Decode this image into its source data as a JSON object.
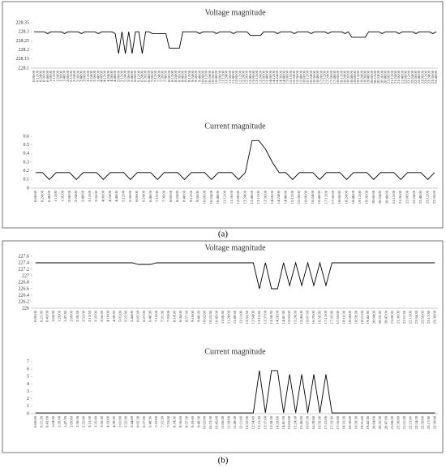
{
  "panel_labels": [
    "(a)",
    "(b)"
  ],
  "chart_data": [
    {
      "type": "line",
      "title": "Voltage magnitude",
      "color": "#000000",
      "ylim": [
        228.1,
        228.35
      ],
      "yticks": [
        228.1,
        228.15,
        228.2,
        228.25,
        228.3,
        228.35
      ],
      "categories": [
        "0:00:00",
        "0:12:00",
        "0:24:00",
        "0:36:00",
        "0:48:00",
        "1:00:00",
        "1:12:00",
        "1:24:00",
        "1:36:00",
        "1:48:00",
        "2:00:00",
        "2:12:00",
        "2:24:00",
        "2:36:00",
        "2:48:00",
        "3:00:00",
        "3:12:00",
        "3:24:00",
        "3:36:00",
        "3:48:00",
        "4:00:00",
        "4:12:00",
        "4:24:00",
        "4:36:00",
        "4:48:00",
        "5:00:00",
        "5:12:00",
        "5:24:00",
        "5:36:00",
        "5:48:00",
        "6:00:00",
        "6:12:00",
        "6:24:00",
        "6:36:00",
        "6:48:00",
        "7:00:00",
        "7:12:00",
        "7:24:00",
        "7:36:00",
        "7:48:00",
        "8:00:00",
        "8:12:00",
        "8:24:00",
        "8:36:00",
        "8:48:00",
        "9:00:00",
        "9:12:00",
        "9:24:00",
        "9:36:00",
        "9:48:00",
        "10:00:00",
        "10:12:00",
        "10:24:00",
        "10:36:00",
        "10:48:00",
        "11:00:00",
        "11:12:00",
        "11:24:00",
        "11:36:00",
        "11:48:00",
        "12:00:00",
        "12:12:00",
        "12:24:00",
        "12:36:00",
        "12:48:00",
        "13:00:00",
        "13:12:00",
        "13:24:00",
        "13:36:00",
        "13:48:00",
        "14:00:00",
        "14:12:00",
        "14:24:00",
        "14:36:00",
        "14:48:00",
        "15:00:00",
        "15:12:00",
        "15:24:00",
        "15:36:00",
        "15:48:00",
        "16:00:00",
        "16:12:00",
        "16:24:00",
        "16:36:00",
        "16:48:00",
        "17:00:00",
        "17:12:00",
        "17:24:00",
        "17:36:00",
        "17:48:00",
        "18:00:00",
        "18:12:00",
        "18:24:00",
        "18:36:00",
        "18:48:00",
        "19:00:00",
        "19:12:00",
        "19:24:00",
        "19:36:00",
        "19:48:00",
        "20:00:00",
        "20:12:00",
        "20:24:00",
        "20:36:00",
        "20:48:00",
        "21:00:00",
        "21:12:00",
        "21:24:00",
        "21:36:00",
        "21:48:00",
        "22:00:00",
        "22:12:00",
        "22:24:00",
        "22:36:00",
        "22:48:00",
        "23:00:00",
        "23:12:00",
        "23:24:00",
        "23:36:00",
        "23:48:00"
      ],
      "values": [
        228.3,
        228.3,
        228.3,
        228.3,
        228.29,
        228.3,
        228.3,
        228.3,
        228.3,
        228.29,
        228.3,
        228.3,
        228.3,
        228.3,
        228.29,
        228.3,
        228.3,
        228.3,
        228.3,
        228.29,
        228.3,
        228.3,
        228.3,
        228.3,
        228.29,
        228.18,
        228.3,
        228.18,
        228.3,
        228.18,
        228.3,
        228.3,
        228.18,
        228.3,
        228.3,
        228.29,
        228.29,
        228.29,
        228.29,
        228.29,
        228.21,
        228.21,
        228.21,
        228.21,
        228.3,
        228.3,
        228.3,
        228.3,
        228.3,
        228.29,
        228.3,
        228.3,
        228.3,
        228.3,
        228.29,
        228.3,
        228.3,
        228.3,
        228.3,
        228.29,
        228.3,
        228.3,
        228.3,
        228.3,
        228.28,
        228.28,
        228.28,
        228.28,
        228.3,
        228.3,
        228.3,
        228.3,
        228.29,
        228.3,
        228.3,
        228.3,
        228.3,
        228.29,
        228.3,
        228.3,
        228.3,
        228.3,
        228.29,
        228.3,
        228.3,
        228.3,
        228.3,
        228.29,
        228.3,
        228.3,
        228.3,
        228.3,
        228.29,
        228.3,
        228.27,
        228.27,
        228.27,
        228.27,
        228.27,
        228.3,
        228.3,
        228.3,
        228.3,
        228.29,
        228.3,
        228.3,
        228.3,
        228.3,
        228.29,
        228.3,
        228.3,
        228.3,
        228.3,
        228.29,
        228.3,
        228.3,
        228.3,
        228.3,
        228.29,
        228.3
      ]
    },
    {
      "type": "line",
      "title": "Current magnitude",
      "color": "#000000",
      "ylim": [
        0,
        0.6
      ],
      "yticks": [
        0,
        0.1,
        0.2,
        0.3,
        0.4,
        0.5,
        0.6
      ],
      "categories": [
        "0:00:00",
        "0:24:00",
        "0:48:00",
        "1:12:00",
        "1:36:00",
        "2:00:00",
        "2:24:00",
        "2:48:00",
        "3:12:00",
        "3:36:00",
        "4:00:00",
        "4:24:00",
        "4:48:00",
        "5:12:00",
        "5:36:00",
        "6:00:00",
        "6:24:00",
        "6:48:00",
        "7:12:00",
        "7:36:00",
        "8:00:00",
        "8:24:00",
        "8:48:00",
        "9:12:00",
        "9:36:00",
        "10:00:00",
        "10:24:00",
        "10:48:00",
        "11:12:00",
        "11:36:00",
        "12:00:00",
        "12:24:00",
        "12:48:00",
        "13:12:00",
        "13:36:00",
        "14:00:00",
        "14:24:00",
        "14:48:00",
        "15:12:00",
        "15:36:00",
        "16:00:00",
        "16:24:00",
        "16:48:00",
        "17:12:00",
        "17:36:00",
        "18:00:00",
        "18:24:00",
        "18:48:00",
        "19:12:00",
        "19:36:00",
        "20:00:00",
        "20:24:00",
        "20:48:00",
        "21:12:00",
        "21:36:00",
        "22:00:00",
        "22:24:00",
        "22:48:00",
        "23:12:00",
        "23:36:00"
      ],
      "values": [
        0.18,
        0.18,
        0.1,
        0.18,
        0.18,
        0.18,
        0.1,
        0.18,
        0.18,
        0.18,
        0.1,
        0.18,
        0.18,
        0.18,
        0.1,
        0.18,
        0.18,
        0.18,
        0.1,
        0.18,
        0.18,
        0.18,
        0.1,
        0.18,
        0.18,
        0.18,
        0.1,
        0.18,
        0.18,
        0.18,
        0.1,
        0.18,
        0.55,
        0.55,
        0.45,
        0.3,
        0.18,
        0.18,
        0.1,
        0.18,
        0.18,
        0.18,
        0.1,
        0.18,
        0.18,
        0.18,
        0.1,
        0.18,
        0.18,
        0.18,
        0.1,
        0.18,
        0.18,
        0.18,
        0.1,
        0.18,
        0.18,
        0.18,
        0.1,
        0.18
      ]
    },
    {
      "type": "line",
      "title": "Voltage magnitude",
      "color": "#000000",
      "ylim": [
        226,
        227.6
      ],
      "yticks": [
        226,
        226.2,
        226.4,
        226.6,
        226.8,
        227,
        227.2,
        227.4,
        227.6
      ],
      "categories": [
        "0:00:00",
        "0:21:30",
        "0:43:00",
        "1:04:30",
        "1:26:00",
        "1:47:30",
        "2:09:00",
        "2:30:30",
        "2:52:00",
        "3:13:30",
        "3:35:00",
        "3:56:30",
        "4:18:00",
        "4:39:30",
        "5:01:00",
        "5:22:30",
        "5:44:00",
        "6:05:30",
        "6:27:00",
        "6:48:30",
        "7:10:00",
        "7:31:30",
        "7:53:00",
        "8:14:30",
        "8:36:00",
        "8:57:30",
        "9:19:00",
        "9:40:30",
        "10:02:00",
        "10:23:30",
        "10:45:00",
        "11:06:30",
        "11:28:00",
        "11:49:30",
        "12:11:00",
        "12:32:30",
        "12:54:00",
        "13:15:30",
        "13:37:00",
        "13:58:30",
        "14:20:00",
        "14:41:30",
        "15:03:00",
        "15:24:30",
        "15:46:00",
        "16:07:30",
        "16:29:00",
        "16:50:30",
        "17:12:00",
        "17:33:30",
        "17:55:00",
        "18:16:30",
        "18:38:00",
        "18:59:30",
        "19:21:00",
        "19:42:30",
        "20:04:00",
        "20:25:30",
        "20:47:00",
        "21:08:30",
        "21:30:00",
        "21:51:30",
        "22:13:00",
        "22:34:30",
        "22:56:00",
        "23:17:30",
        "23:39:00"
      ],
      "values": [
        227.4,
        227.4,
        227.4,
        227.4,
        227.4,
        227.4,
        227.4,
        227.4,
        227.4,
        227.4,
        227.4,
        227.4,
        227.4,
        227.4,
        227.4,
        227.4,
        227.4,
        227.35,
        227.35,
        227.35,
        227.4,
        227.4,
        227.4,
        227.4,
        227.4,
        227.4,
        227.4,
        227.4,
        227.4,
        227.4,
        227.4,
        227.4,
        227.4,
        227.4,
        227.4,
        227.4,
        227.4,
        226.6,
        227.4,
        226.6,
        226.6,
        227.4,
        226.7,
        227.4,
        226.7,
        227.4,
        226.7,
        227.4,
        226.7,
        227.4,
        227.4,
        227.4,
        227.4,
        227.4,
        227.4,
        227.4,
        227.4,
        227.4,
        227.4,
        227.4,
        227.4,
        227.4,
        227.4,
        227.4,
        227.4,
        227.4,
        227.4
      ]
    },
    {
      "type": "line",
      "title": "Current magnitude",
      "color": "#000000",
      "ylim": [
        0,
        7
      ],
      "yticks": [
        0,
        1,
        2,
        3,
        4,
        5,
        6,
        7
      ],
      "categories": [
        "0:00:00",
        "0:21:30",
        "0:43:00",
        "1:04:30",
        "1:26:00",
        "1:47:30",
        "2:09:00",
        "2:30:30",
        "2:52:00",
        "3:13:30",
        "3:35:00",
        "3:56:30",
        "4:18:00",
        "4:39:30",
        "5:01:00",
        "5:22:30",
        "5:44:00",
        "6:05:30",
        "6:27:00",
        "6:48:30",
        "7:10:00",
        "7:31:30",
        "7:53:00",
        "8:14:30",
        "8:36:00",
        "8:57:30",
        "9:19:00",
        "9:40:30",
        "10:02:00",
        "10:23:30",
        "10:45:00",
        "11:06:30",
        "11:28:00",
        "11:49:30",
        "12:11:00",
        "12:32:30",
        "12:54:00",
        "13:15:30",
        "13:37:00",
        "13:58:30",
        "14:20:00",
        "14:41:30",
        "15:03:00",
        "15:24:30",
        "15:46:00",
        "16:07:30",
        "16:29:00",
        "16:50:30",
        "17:12:00",
        "17:33:30",
        "17:55:00",
        "18:16:30",
        "18:38:00",
        "18:59:30",
        "19:21:00",
        "19:42:30",
        "20:04:00",
        "20:25:30",
        "20:47:00",
        "21:08:30",
        "21:30:00",
        "21:51:30",
        "22:13:00",
        "22:34:30",
        "22:56:00",
        "23:17:30",
        "23:39:00"
      ],
      "values": [
        0.1,
        0.1,
        0.1,
        0.1,
        0.1,
        0.1,
        0.1,
        0.1,
        0.1,
        0.1,
        0.1,
        0.1,
        0.1,
        0.1,
        0.1,
        0.1,
        0.1,
        0.1,
        0.1,
        0.1,
        0.1,
        0.1,
        0.1,
        0.1,
        0.1,
        0.1,
        0.1,
        0.1,
        0.1,
        0.1,
        0.1,
        0.1,
        0.1,
        0.1,
        0.1,
        0.1,
        0.1,
        5.8,
        0.1,
        5.8,
        5.8,
        0.1,
        5.3,
        0.1,
        5.3,
        0.1,
        5.3,
        0.1,
        5.3,
        0.1,
        0.1,
        0.1,
        0.1,
        0.1,
        0.1,
        0.1,
        0.1,
        0.1,
        0.1,
        0.1,
        0.1,
        0.1,
        0.1,
        0.1,
        0.1,
        0.1,
        0.1
      ]
    }
  ]
}
